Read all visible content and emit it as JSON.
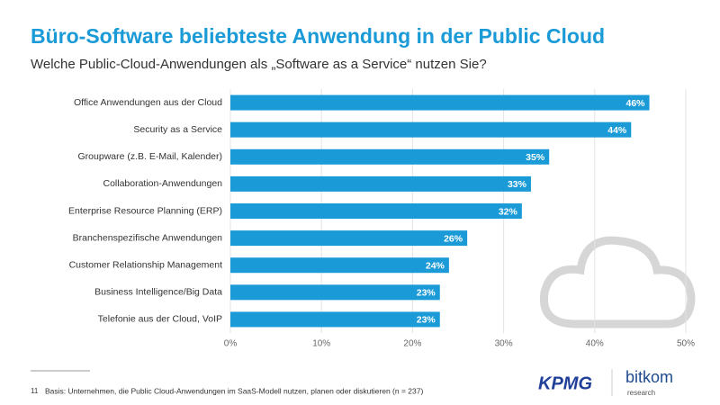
{
  "chart_data": {
    "type": "bar",
    "orientation": "horizontal",
    "title": "Büro-Software beliebteste Anwendung in der Public Cloud",
    "subtitle": "Welche Public-Cloud-Anwendungen als „Software as a Service“ nutzen Sie?",
    "categories": [
      "Office Anwendungen aus der Cloud",
      "Security as a Service",
      "Groupware (z.B. E-Mail, Kalender)",
      "Collaboration-Anwendungen",
      "Enterprise Resource Planning (ERP)",
      "Branchenspezifische Anwendungen",
      "Customer Relationship Management",
      "Business Intelligence/Big Data",
      "Telefonie aus der Cloud, VoIP"
    ],
    "values": [
      46,
      44,
      35,
      33,
      32,
      26,
      24,
      23,
      23
    ],
    "value_labels": [
      "46%",
      "44%",
      "35%",
      "33%",
      "32%",
      "26%",
      "24%",
      "23%",
      "23%"
    ],
    "color": "#1a9ad6",
    "xlim": [
      0,
      50
    ],
    "xticks": [
      {
        "value": 0,
        "label": "0%"
      },
      {
        "value": 10,
        "label": "10%"
      },
      {
        "value": 20,
        "label": "20%"
      },
      {
        "value": 30,
        "label": "30%"
      },
      {
        "value": 40,
        "label": "40%"
      },
      {
        "value": 50,
        "label": "50%"
      }
    ],
    "grid": true
  },
  "footer": {
    "page": "11",
    "note": "Basis: Unternehmen, die Public Cloud-Anwendungen im SaaS-Modell nutzen, planen oder diskutieren (n = 237)",
    "logo_left": "KPMG",
    "logo_right": "bitkom",
    "logo_right_sub": "research"
  }
}
